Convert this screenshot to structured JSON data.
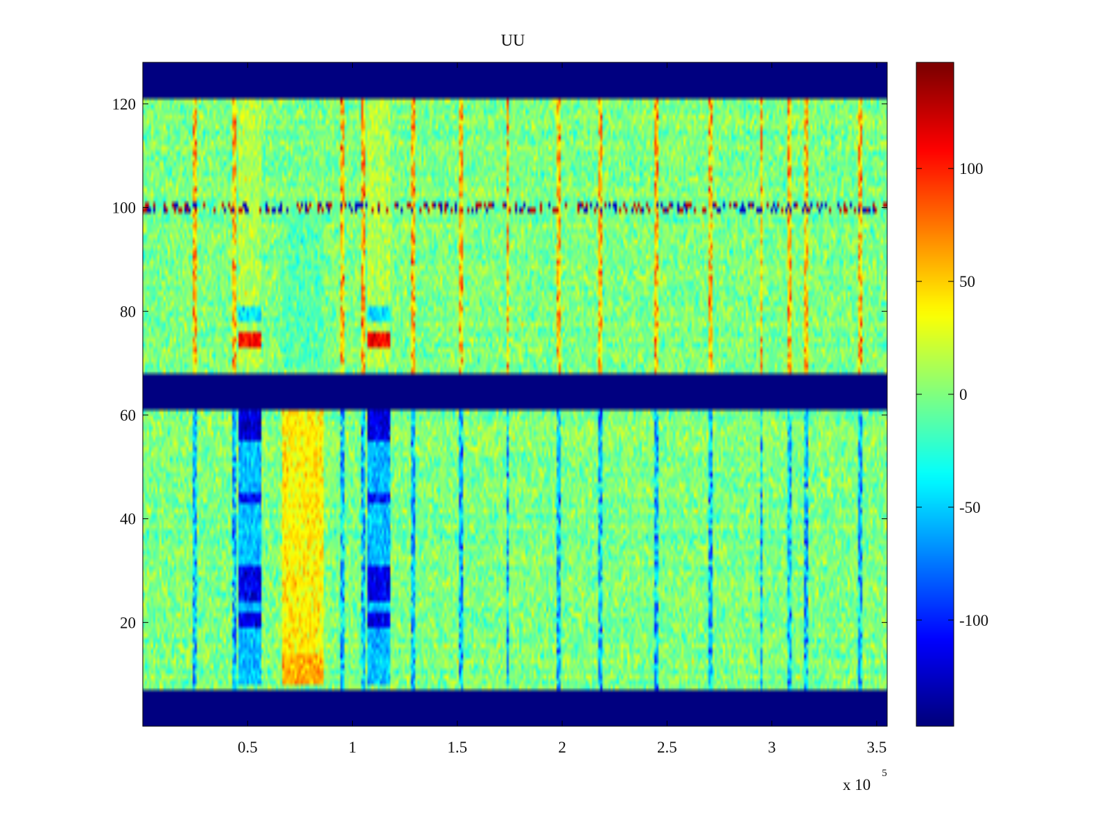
{
  "chart_data": {
    "type": "heatmap",
    "title": "UU",
    "xlabel": "",
    "ylabel": "",
    "x_multiplier_label": "x 10",
    "x_multiplier_exponent": "5",
    "xlim": [
      0,
      355000
    ],
    "ylim": [
      0,
      128
    ],
    "xticks": [
      {
        "value": 50000,
        "label": "0.5"
      },
      {
        "value": 100000,
        "label": "1"
      },
      {
        "value": 150000,
        "label": "1.5"
      },
      {
        "value": 200000,
        "label": "2"
      },
      {
        "value": 250000,
        "label": "2.5"
      },
      {
        "value": 300000,
        "label": "3"
      },
      {
        "value": 350000,
        "label": "3.5"
      }
    ],
    "yticks": [
      {
        "value": 20,
        "label": "20"
      },
      {
        "value": 40,
        "label": "40"
      },
      {
        "value": 60,
        "label": "60"
      },
      {
        "value": 80,
        "label": "80"
      },
      {
        "value": 100,
        "label": "100"
      },
      {
        "value": 120,
        "label": "120"
      }
    ],
    "colorbar": {
      "colormap": "jet",
      "range": [
        -147,
        147
      ],
      "ticks": [
        {
          "value": 100,
          "label": "100"
        },
        {
          "value": 50,
          "label": "50"
        },
        {
          "value": 0,
          "label": "0"
        },
        {
          "value": -50,
          "label": "-50"
        },
        {
          "value": -100,
          "label": "-100"
        }
      ]
    },
    "empty_row_bands": [
      {
        "y_from": 0,
        "y_to": 7,
        "value": -147
      },
      {
        "y_from": 61,
        "y_to": 68,
        "value": -147
      },
      {
        "y_from": 121,
        "y_to": 128,
        "value": -147
      }
    ],
    "cell_value_range": [
      -147,
      147
    ],
    "background_value": 0,
    "vertical_event_columns_x": [
      25000,
      44000,
      95000,
      105000,
      129000,
      152000,
      174000,
      198000,
      218000,
      245000,
      271000,
      295000,
      308000,
      316000,
      342000
    ],
    "horizontal_bands": [
      {
        "y_from": 99,
        "y_to": 101,
        "pattern": "spotty-extreme"
      }
    ],
    "regions": [
      {
        "x_from": 46000,
        "x_to": 57000,
        "y_from": 69,
        "y_to": 121,
        "value": 15
      },
      {
        "x_from": 107000,
        "x_to": 118000,
        "y_from": 69,
        "y_to": 121,
        "value": 15
      },
      {
        "x_from": 46000,
        "x_to": 57000,
        "y_from": 73,
        "y_to": 76,
        "value": 110
      },
      {
        "x_from": 107000,
        "x_to": 118000,
        "y_from": 73,
        "y_to": 76,
        "value": 110
      },
      {
        "x_from": 46000,
        "x_to": 57000,
        "y_from": 78,
        "y_to": 81,
        "value": -45
      },
      {
        "x_from": 107000,
        "x_to": 118000,
        "y_from": 78,
        "y_to": 81,
        "value": -45
      },
      {
        "x_from": 46000,
        "x_to": 57000,
        "y_from": 8,
        "y_to": 61,
        "value": -55
      },
      {
        "x_from": 107000,
        "x_to": 118000,
        "y_from": 8,
        "y_to": 61,
        "value": -55
      },
      {
        "x_from": 46000,
        "x_to": 57000,
        "y_from": 55,
        "y_to": 61,
        "value": -120
      },
      {
        "x_from": 107000,
        "x_to": 118000,
        "y_from": 55,
        "y_to": 61,
        "value": -120
      },
      {
        "x_from": 46000,
        "x_to": 57000,
        "y_from": 24,
        "y_to": 31,
        "value": -115
      },
      {
        "x_from": 107000,
        "x_to": 118000,
        "y_from": 24,
        "y_to": 31,
        "value": -115
      },
      {
        "x_from": 46000,
        "x_to": 57000,
        "y_from": 19,
        "y_to": 22,
        "value": -120
      },
      {
        "x_from": 107000,
        "x_to": 118000,
        "y_from": 19,
        "y_to": 22,
        "value": -120
      },
      {
        "x_from": 46000,
        "x_to": 57000,
        "y_from": 43,
        "y_to": 45,
        "value": -110
      },
      {
        "x_from": 107000,
        "x_to": 118000,
        "y_from": 43,
        "y_to": 45,
        "value": -110
      },
      {
        "x_from": 66000,
        "x_to": 86000,
        "y_from": 8,
        "y_to": 61,
        "value": 40
      },
      {
        "x_from": 66000,
        "x_to": 86000,
        "y_from": 8,
        "y_to": 14,
        "value": 60
      },
      {
        "x_from": 66000,
        "x_to": 86000,
        "y_from": 69,
        "y_to": 100,
        "value": -12
      }
    ]
  }
}
